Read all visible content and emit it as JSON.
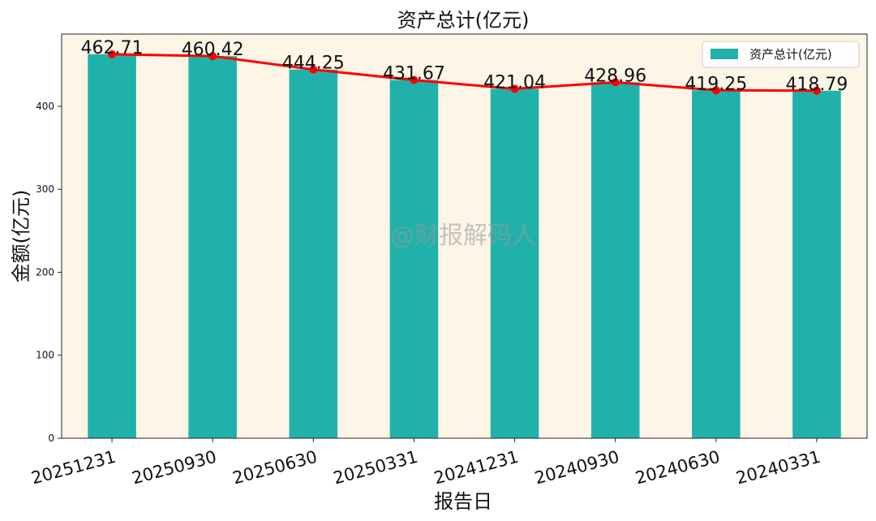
{
  "chart_data": {
    "type": "bar",
    "title": "资产总计(亿元)",
    "xlabel": "报告日",
    "ylabel": "金额(亿元)",
    "categories": [
      "20251231",
      "20250930",
      "20250630",
      "20250331",
      "20241231",
      "20240930",
      "20240630",
      "20240331"
    ],
    "series": [
      {
        "name": "资产总计(亿元)",
        "kind": "bar",
        "values": [
          462.71,
          460.42,
          444.25,
          431.67,
          421.04,
          428.96,
          419.25,
          418.79
        ]
      },
      {
        "kind": "line",
        "values": [
          462.71,
          460.42,
          444.25,
          431.67,
          421.04,
          428.96,
          419.25,
          418.79
        ]
      }
    ],
    "data_labels": [
      "462.71",
      "460.42",
      "444.25",
      "431.67",
      "421.04",
      "428.96",
      "419.25",
      "418.79"
    ],
    "ylim": [
      0,
      487
    ],
    "yticks": [
      0,
      100,
      200,
      300,
      400
    ],
    "legend_position": "top-right",
    "grid": false,
    "colors": {
      "bar": "#20b2aa",
      "line": "#ff0000",
      "plot_background": "#fdf5e6"
    }
  },
  "watermark": "@财报解码人"
}
